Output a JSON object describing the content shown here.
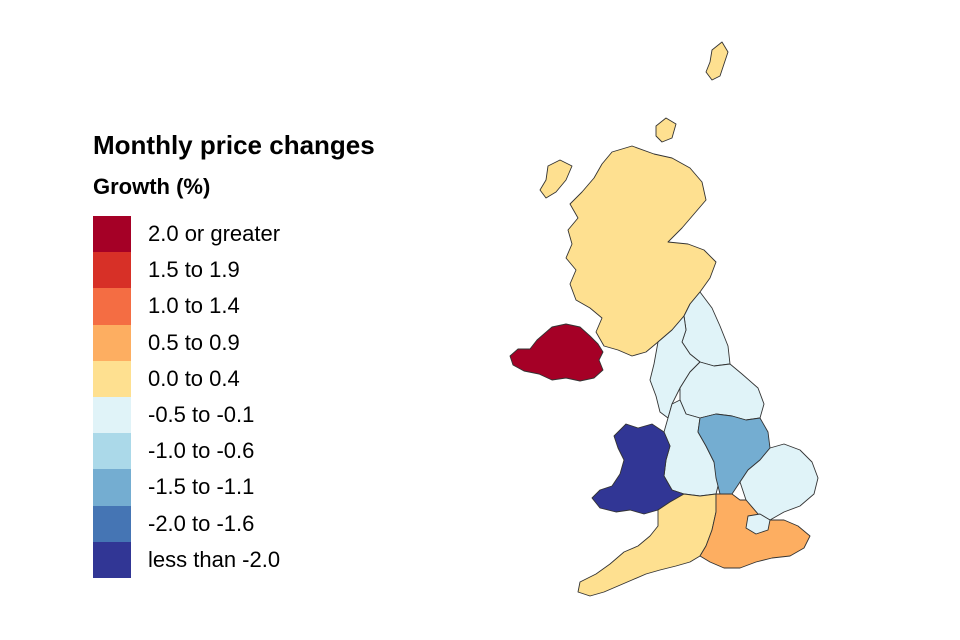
{
  "legend": {
    "title": "Monthly price changes",
    "subtitle": "Growth (%)",
    "items": [
      {
        "label": "2.0 or greater",
        "color": "#a50026"
      },
      {
        "label": "1.5 to 1.9",
        "color": "#d73027"
      },
      {
        "label": "1.0 to 1.4",
        "color": "#f46d43"
      },
      {
        "label": "0.5 to 0.9",
        "color": "#fdae61"
      },
      {
        "label": "0.0 to 0.4",
        "color": "#fee090"
      },
      {
        "label": "-0.5 to -0.1",
        "color": "#e0f3f8"
      },
      {
        "label": "-1.0 to -0.6",
        "color": "#abd9e9"
      },
      {
        "label": "-1.5 to -1.1",
        "color": "#74add1"
      },
      {
        "label": "-2.0 to -1.6",
        "color": "#4575b4"
      },
      {
        "label": "less than -2.0",
        "color": "#313695"
      }
    ]
  },
  "regions": [
    {
      "name": "Scotland",
      "band": "0.0 to 0.4"
    },
    {
      "name": "Northern Ireland",
      "band": "2.0 or greater"
    },
    {
      "name": "North East",
      "band": "-0.5 to -0.1"
    },
    {
      "name": "North West",
      "band": "-0.5 to -0.1"
    },
    {
      "name": "Yorkshire and The Humber",
      "band": "-0.5 to -0.1"
    },
    {
      "name": "West Midlands",
      "band": "-0.5 to -0.1"
    },
    {
      "name": "East Midlands",
      "band": "-1.5 to -1.1"
    },
    {
      "name": "East of England",
      "band": "-0.5 to -0.1"
    },
    {
      "name": "Wales",
      "band": "less than -2.0"
    },
    {
      "name": "South West",
      "band": "0.0 to 0.4"
    },
    {
      "name": "South East",
      "band": "0.5 to 0.9"
    },
    {
      "name": "London",
      "band": "-0.5 to -0.1"
    }
  ]
}
